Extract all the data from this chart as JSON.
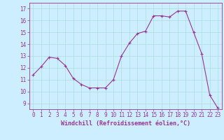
{
  "x": [
    0,
    1,
    2,
    3,
    4,
    5,
    6,
    7,
    8,
    9,
    10,
    11,
    12,
    13,
    14,
    15,
    16,
    17,
    18,
    19,
    20,
    21,
    22,
    23
  ],
  "y": [
    11.4,
    12.1,
    12.9,
    12.8,
    12.2,
    11.1,
    10.6,
    10.3,
    10.3,
    10.3,
    11.0,
    13.0,
    14.1,
    14.9,
    15.1,
    16.4,
    16.4,
    16.3,
    16.8,
    16.8,
    15.0,
    13.2,
    9.7,
    8.6
  ],
  "line_color": "#993399",
  "marker": "+",
  "marker_size": 3,
  "marker_linewidth": 0.8,
  "line_width": 0.8,
  "bg_color": "#cceeff",
  "grid_color": "#aadddd",
  "xlabel": "Windchill (Refroidissement éolien,°C)",
  "xlabel_fontsize": 6.0,
  "ylim": [
    8.5,
    17.5
  ],
  "xlim": [
    -0.5,
    23.5
  ],
  "yticks": [
    9,
    10,
    11,
    12,
    13,
    14,
    15,
    16,
    17
  ],
  "xticks": [
    0,
    1,
    2,
    3,
    4,
    5,
    6,
    7,
    8,
    9,
    10,
    11,
    12,
    13,
    14,
    15,
    16,
    17,
    18,
    19,
    20,
    21,
    22,
    23
  ],
  "tick_fontsize": 5.5
}
